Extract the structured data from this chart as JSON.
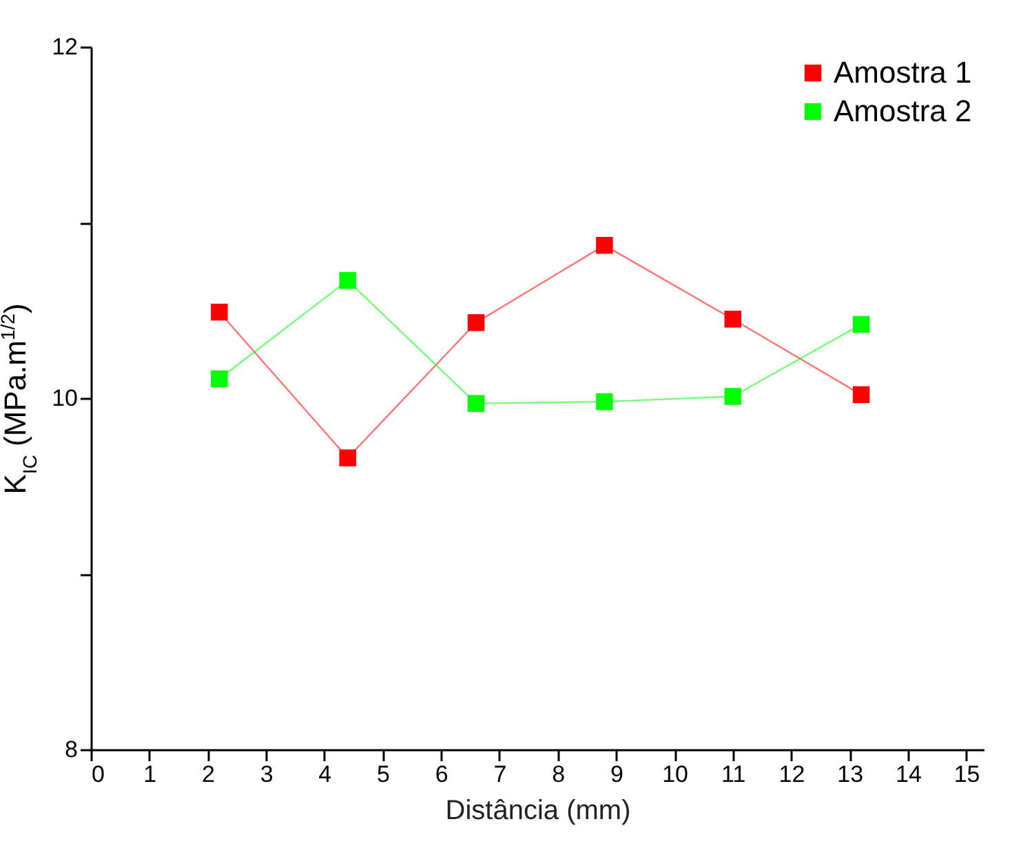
{
  "chart_data": {
    "type": "line",
    "xlabel": "Distância (mm)",
    "ylabel": "K$_{IC}$ (MPa.m$^{1/2}$)",
    "x": [
      2.2,
      4.4,
      6.6,
      8.8,
      11,
      13.2
    ],
    "series": [
      {
        "name": "Amostra 1",
        "color": "#ff0000",
        "values": [
          10.49,
          9.66,
          10.43,
          10.87,
          10.45,
          10.02
        ]
      },
      {
        "name": "Amostra 2",
        "color": "#00ff00",
        "values": [
          10.11,
          10.67,
          9.97,
          9.98,
          10.01,
          10.42
        ]
      }
    ],
    "xlim": [
      0,
      15.3
    ],
    "xticks": [
      0,
      1,
      2,
      3,
      4,
      5,
      6,
      7,
      8,
      9,
      10,
      11,
      12,
      13,
      14,
      15
    ],
    "ylim": [
      8,
      12
    ],
    "yticks": [
      8,
      {
        "value": 9,
        "label": null
      },
      10,
      {
        "value": 11,
        "label": null
      },
      12
    ],
    "marker": "square",
    "line_style": "solid",
    "legend": "top right",
    "grid": false
  }
}
